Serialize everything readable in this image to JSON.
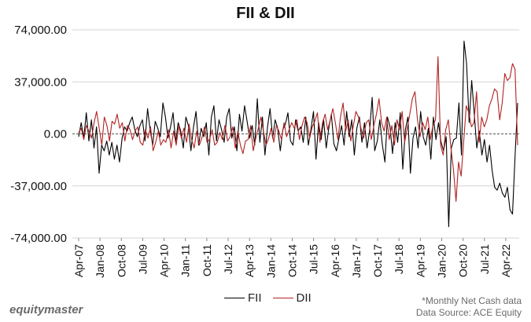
{
  "chart_data": {
    "type": "line",
    "title": "FII & DII",
    "ylim": [
      -74000,
      74000
    ],
    "yticks": [
      74000,
      37000,
      0,
      -37000,
      -74000
    ],
    "ytick_labels": [
      "74,000.00",
      "37,000.00",
      "0.00",
      "-37,000.00",
      "-74,000.00"
    ],
    "x_start": "2007-04",
    "x_end": "2022-09",
    "xtick_labels": [
      "Apr-07",
      "Jan-08",
      "Oct-08",
      "Jul-09",
      "Apr-10",
      "Jan-11",
      "Oct-11",
      "Jul-12",
      "Apr-13",
      "Jan-14",
      "Oct-14",
      "Jul-15",
      "Apr-16",
      "Jan-17",
      "Oct-17",
      "Jul-18",
      "Apr-19",
      "Jan-20",
      "Oct-20",
      "Jul-21",
      "Apr-22"
    ],
    "grid": true,
    "legend_position": "bottom",
    "series": [
      {
        "name": "FII",
        "color": "#000000",
        "values": [
          -2000,
          8000,
          -3000,
          15000,
          -5000,
          10000,
          -10000,
          5000,
          -28000,
          -8000,
          -12000,
          -5000,
          -15000,
          -6000,
          -18000,
          -8000,
          -20000,
          -3000,
          5000,
          2000,
          8000,
          12000,
          3000,
          -2000,
          6000,
          10000,
          -5000,
          18000,
          3000,
          -8000,
          9000,
          4000,
          -2000,
          22000,
          12000,
          -3000,
          5000,
          15000,
          -6000,
          8000,
          2000,
          -10000,
          12000,
          6000,
          -12000,
          5000,
          16000,
          -8000,
          4000,
          -2000,
          8000,
          -15000,
          12000,
          20000,
          -5000,
          10000,
          3000,
          -6000,
          12000,
          18000,
          -3000,
          5000,
          -12000,
          14000,
          2000,
          20000,
          9000,
          -3000,
          6000,
          -8000,
          25000,
          -6000,
          12000,
          -15000,
          5000,
          18000,
          -3000,
          10000,
          4000,
          -12000,
          3000,
          7000,
          15000,
          -5000,
          -8000,
          10000,
          2000,
          5000,
          -6000,
          12000,
          -8000,
          3000,
          16000,
          -18000,
          8000,
          -4000,
          10000,
          -10000,
          4000,
          14000,
          -7000,
          -12000,
          -3000,
          6000,
          -8000,
          16000,
          -2000,
          10000,
          -15000,
          4000,
          12000,
          -6000,
          8000,
          -10000,
          2000,
          26000,
          -12000,
          -5000,
          10000,
          -8000,
          -20000,
          12000,
          5000,
          -14000,
          8000,
          -6000,
          15000,
          -25000,
          3000,
          12000,
          -28000,
          -3000,
          5000,
          -10000,
          16000,
          -2000,
          -8000,
          4000,
          -18000,
          12000,
          -4000,
          8000,
          -6000,
          -12000,
          -2000,
          -66000,
          -10000,
          -4000,
          -3000,
          22000,
          -15000,
          66000,
          50000,
          8000,
          38000,
          15000,
          -10000,
          2000,
          -15000,
          -4000,
          -20000,
          -8000,
          -26000,
          -38000,
          -40000,
          -35000,
          -42000,
          -45000,
          -38000,
          -54000,
          -57000,
          -15000,
          22000
        ]
      },
      {
        "name": "DII",
        "color": "#b22222",
        "values": [
          1000,
          4000,
          -4000,
          6000,
          2000,
          -3000,
          8000,
          16000,
          4000,
          -8000,
          12000,
          6000,
          -5000,
          9000,
          7000,
          14000,
          4000,
          8000,
          -5000,
          6000,
          3000,
          -4000,
          2000,
          5000,
          -6000,
          -8000,
          3000,
          -3000,
          5000,
          -12000,
          -6000,
          2000,
          -8000,
          -4000,
          -6000,
          3000,
          -10000,
          2000,
          -8000,
          6000,
          -3000,
          4000,
          -6000,
          7000,
          -4000,
          -10000,
          2000,
          -8000,
          -3000,
          5000,
          -6000,
          -4000,
          3000,
          -8000,
          -6000,
          1000,
          -4000,
          6000,
          -5000,
          -2000,
          5000,
          -10000,
          2000,
          -8000,
          -14000,
          -5000,
          -4000,
          6000,
          -12000,
          -3000,
          4000,
          12000,
          2000,
          -8000,
          -3000,
          4000,
          -6000,
          6000,
          2000,
          -4000,
          8000,
          -2000,
          3000,
          8000,
          4000,
          10000,
          -4000,
          6000,
          12000,
          8000,
          -3000,
          5000,
          9000,
          15000,
          -6000,
          8000,
          14000,
          3000,
          10000,
          18000,
          8000,
          -4000,
          12000,
          22000,
          2000,
          10000,
          -5000,
          6000,
          16000,
          12000,
          4000,
          -3000,
          8000,
          10000,
          -4000,
          6000,
          14000,
          25000,
          8000,
          2000,
          12000,
          -4000,
          6000,
          -8000,
          10000,
          3000,
          16000,
          -6000,
          4000,
          14000,
          25000,
          30000,
          10000,
          -2000,
          8000,
          3000,
          12000,
          -4000,
          6000,
          10000,
          55000,
          -8000,
          -15000,
          3000,
          10000,
          -10000,
          -25000,
          -48000,
          -20000,
          -30000,
          -5000,
          20000,
          15000,
          5000,
          8000,
          30000,
          -6000,
          12000,
          5000,
          10000,
          20000,
          25000,
          32000,
          30000,
          10000,
          22000,
          43000,
          38000,
          40000,
          50000,
          46000,
          -8000
        ]
      }
    ]
  },
  "legend": [
    {
      "label": "FII",
      "color": "#000000"
    },
    {
      "label": "DII",
      "color": "#b22222"
    }
  ],
  "brand": "equitymaster",
  "footnote": {
    "line1": "*Monthly Net Cash data",
    "line2": "Data Source: ACE Equity"
  }
}
